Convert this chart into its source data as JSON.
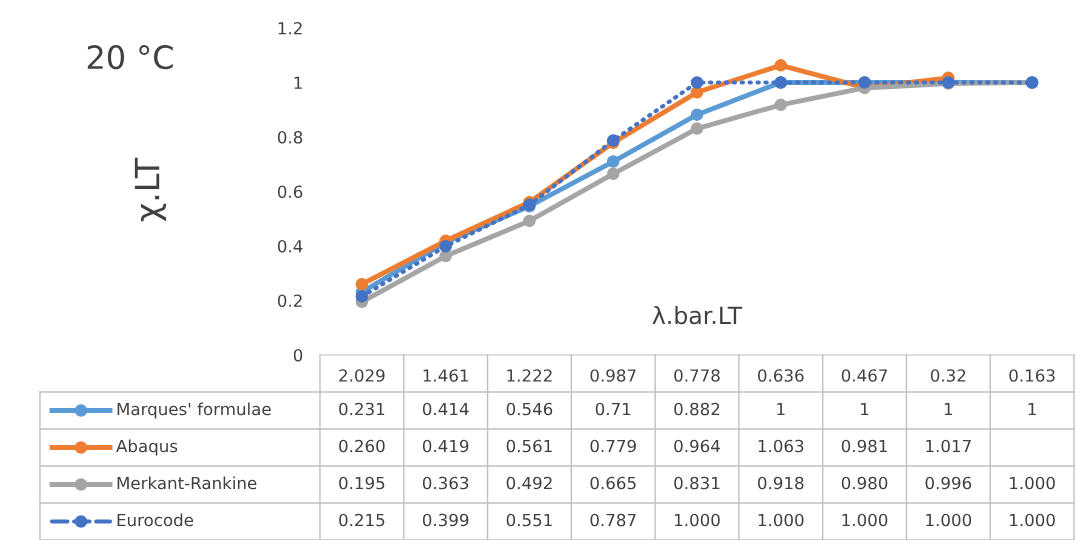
{
  "chart_data": {
    "type": "line",
    "xlabel": "λ.bar.LT",
    "ylabel": "χ.LT",
    "annotations": [
      "20 °C"
    ],
    "categories": [
      "2.029",
      "1.461",
      "1.222",
      "0.987",
      "0.778",
      "0.636",
      "0.467",
      "0.32",
      "0.163"
    ],
    "ylim": [
      0,
      1.2
    ],
    "yticks": [
      0,
      0.2,
      0.4,
      0.6,
      0.8,
      1,
      1.2
    ],
    "marker": "circle",
    "data_labels": true,
    "legend": "bottom",
    "series": [
      {
        "name": "Marques' formulae",
        "color": "#5b9bd5",
        "line_style": "solid",
        "values": [
          0.231,
          0.414,
          0.546,
          0.71,
          0.882,
          1,
          1,
          1,
          1
        ],
        "value_labels": [
          "0.231",
          "0.414",
          "0.546",
          "0.71",
          "0.882",
          "1",
          "1",
          "1",
          "1"
        ]
      },
      {
        "name": "Abaqus",
        "color": "#ed7d31",
        "line_style": "solid",
        "values": [
          0.26,
          0.419,
          0.561,
          0.779,
          0.964,
          1.063,
          0.981,
          1.017,
          null
        ],
        "value_labels": [
          "0.260",
          "0.419",
          "0.561",
          "0.779",
          "0.964",
          "1.063",
          "0.981",
          "1.017",
          null
        ]
      },
      {
        "name": "Merkant-Rankine",
        "color": "#a5a5a5",
        "line_style": "solid",
        "values": [
          0.195,
          0.363,
          0.492,
          0.665,
          0.831,
          0.918,
          0.98,
          0.996,
          1.0
        ],
        "value_labels": [
          "0.195",
          "0.363",
          "0.492",
          "0.665",
          "0.831",
          "0.918",
          "0.980",
          "0.996",
          "1.000"
        ]
      },
      {
        "name": "Eurocode",
        "color": "#4472c4",
        "line_style": "dotted",
        "values": [
          0.215,
          0.399,
          0.551,
          0.787,
          1.0,
          1.0,
          1.0,
          1.0,
          1.0
        ],
        "value_labels": [
          "0.215",
          "0.399",
          "0.551",
          "0.787",
          "1.000",
          "1.000",
          "1.000",
          "1.000",
          "1.000"
        ]
      }
    ]
  }
}
